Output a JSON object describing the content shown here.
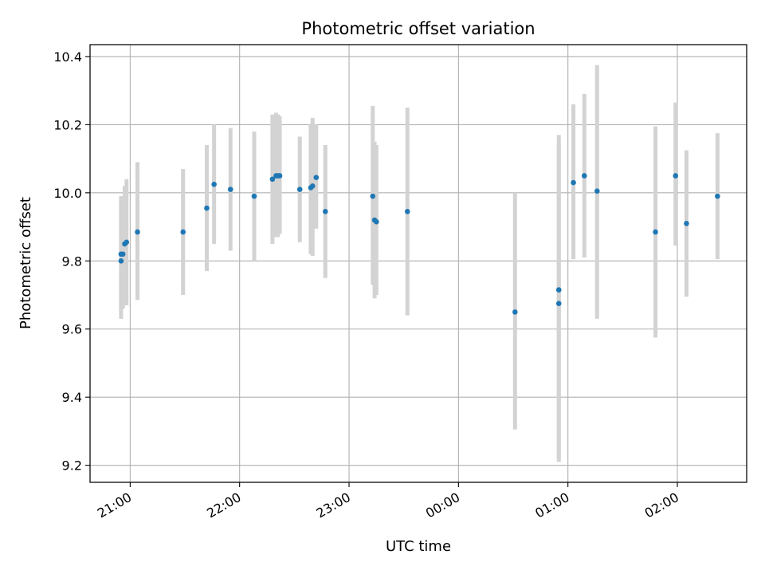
{
  "chart_data": {
    "type": "scatter",
    "title": "Photometric offset variation",
    "xlabel": "UTC time",
    "ylabel": "Photometric offset",
    "x_unit": "UTC time (HH:MM), night crossing midnight",
    "xlim": [
      "20:38",
      "02:38"
    ],
    "ylim": [
      9.15,
      10.435
    ],
    "x_ticks": [
      "21:00",
      "22:00",
      "23:00",
      "00:00",
      "01:00",
      "02:00"
    ],
    "y_ticks": [
      9.2,
      9.4,
      9.6,
      9.8,
      10.0,
      10.2,
      10.4
    ],
    "y_tick_labels": [
      "9.2",
      "9.4",
      "9.6",
      "9.8",
      "10.0",
      "10.2",
      "10.4"
    ],
    "grid": true,
    "point_color": "#1f77b4",
    "errorbar_color": "#d3d3d3",
    "points": [
      {
        "x": "20:55",
        "y": 9.8,
        "ylo": 9.63,
        "yhi": 9.99
      },
      {
        "x": "20:55",
        "y": 9.82,
        "ylo": 9.65,
        "yhi": 9.98
      },
      {
        "x": "20:56",
        "y": 9.82,
        "ylo": 9.66,
        "yhi": 9.97
      },
      {
        "x": "20:57",
        "y": 9.85,
        "ylo": 9.67,
        "yhi": 10.02
      },
      {
        "x": "20:58",
        "y": 9.855,
        "ylo": 9.67,
        "yhi": 10.04
      },
      {
        "x": "21:04",
        "y": 9.885,
        "ylo": 9.685,
        "yhi": 10.09
      },
      {
        "x": "21:29",
        "y": 9.885,
        "ylo": 9.7,
        "yhi": 10.07
      },
      {
        "x": "21:42",
        "y": 9.955,
        "ylo": 9.77,
        "yhi": 10.14
      },
      {
        "x": "21:46",
        "y": 10.025,
        "ylo": 9.85,
        "yhi": 10.2
      },
      {
        "x": "21:55",
        "y": 10.01,
        "ylo": 9.83,
        "yhi": 10.19
      },
      {
        "x": "22:08",
        "y": 9.99,
        "ylo": 9.8,
        "yhi": 10.18
      },
      {
        "x": "22:18",
        "y": 10.04,
        "ylo": 9.85,
        "yhi": 10.23
      },
      {
        "x": "22:20",
        "y": 10.05,
        "ylo": 9.87,
        "yhi": 10.235
      },
      {
        "x": "22:21",
        "y": 10.05,
        "ylo": 9.87,
        "yhi": 10.23
      },
      {
        "x": "22:22",
        "y": 10.05,
        "ylo": 9.88,
        "yhi": 10.225
      },
      {
        "x": "22:33",
        "y": 10.01,
        "ylo": 9.855,
        "yhi": 10.165
      },
      {
        "x": "22:39",
        "y": 10.015,
        "ylo": 9.82,
        "yhi": 10.2
      },
      {
        "x": "22:40",
        "y": 10.02,
        "ylo": 9.815,
        "yhi": 10.22
      },
      {
        "x": "22:42",
        "y": 10.045,
        "ylo": 9.895,
        "yhi": 10.2
      },
      {
        "x": "22:47",
        "y": 9.945,
        "ylo": 9.75,
        "yhi": 10.14
      },
      {
        "x": "23:13",
        "y": 9.99,
        "ylo": 9.73,
        "yhi": 10.255
      },
      {
        "x": "23:14",
        "y": 9.92,
        "ylo": 9.69,
        "yhi": 10.15
      },
      {
        "x": "23:15",
        "y": 9.915,
        "ylo": 9.7,
        "yhi": 10.14
      },
      {
        "x": "23:32",
        "y": 9.945,
        "ylo": 9.64,
        "yhi": 10.25
      },
      {
        "x": "00:31",
        "y": 9.65,
        "ylo": 9.305,
        "yhi": 10.0
      },
      {
        "x": "00:55",
        "y": 9.715,
        "ylo": 9.22,
        "yhi": 10.17
      },
      {
        "x": "00:55",
        "y": 9.675,
        "ylo": 9.21,
        "yhi": 10.14
      },
      {
        "x": "01:03",
        "y": 10.03,
        "ylo": 9.805,
        "yhi": 10.26
      },
      {
        "x": "01:09",
        "y": 10.05,
        "ylo": 9.81,
        "yhi": 10.29
      },
      {
        "x": "01:16",
        "y": 10.005,
        "ylo": 9.63,
        "yhi": 10.375
      },
      {
        "x": "01:48",
        "y": 9.885,
        "ylo": 9.575,
        "yhi": 10.195
      },
      {
        "x": "01:59",
        "y": 10.05,
        "ylo": 9.845,
        "yhi": 10.265
      },
      {
        "x": "02:05",
        "y": 9.91,
        "ylo": 9.695,
        "yhi": 10.125
      },
      {
        "x": "02:22",
        "y": 9.99,
        "ylo": 9.805,
        "yhi": 10.175
      }
    ]
  }
}
